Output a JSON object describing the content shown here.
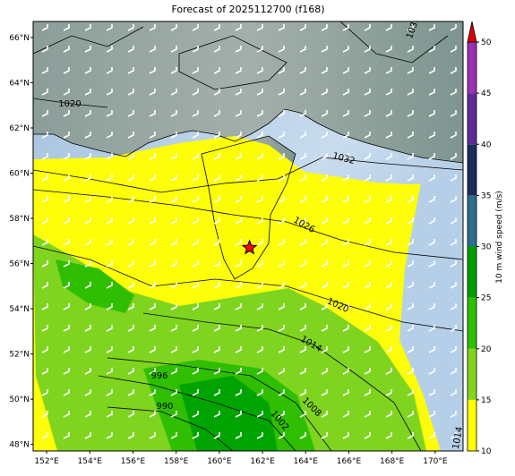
{
  "title": "Forecast of 2025112700 (f168)",
  "map": {
    "xlim": [
      151.375,
      171.29
    ],
    "ylim": [
      47.71,
      66.71
    ],
    "xticks": [
      {
        "value": 152,
        "label": "152°E"
      },
      {
        "value": 154,
        "label": "154°E"
      },
      {
        "value": 156,
        "label": "156°E"
      },
      {
        "value": 158,
        "label": "158°E"
      },
      {
        "value": 160,
        "label": "160°E"
      },
      {
        "value": 162,
        "label": "162°E"
      },
      {
        "value": 164,
        "label": "164°E"
      },
      {
        "value": 166,
        "label": "166°E"
      },
      {
        "value": 168,
        "label": "168°E"
      },
      {
        "value": 170,
        "label": "170°E"
      }
    ],
    "yticks": [
      {
        "value": 48,
        "label": "48°N"
      },
      {
        "value": 50,
        "label": "50°N"
      },
      {
        "value": 52,
        "label": "52°N"
      },
      {
        "value": 54,
        "label": "54°N"
      },
      {
        "value": 56,
        "label": "56°N"
      },
      {
        "value": 58,
        "label": "58°N"
      },
      {
        "value": 60,
        "label": "60°N"
      },
      {
        "value": 62,
        "label": "62°N"
      },
      {
        "value": 64,
        "label": "64°N"
      },
      {
        "value": 66,
        "label": "66°N"
      }
    ],
    "grid": true,
    "marker": {
      "lon": 161.4,
      "lat": 56.7,
      "color": "#ff0000"
    },
    "contour_labels": [
      1020,
      1032,
      1026,
      1020,
      1014,
      1008,
      1002,
      996,
      990,
      1032,
      1014
    ]
  },
  "colorbar": {
    "label": "10 m wind speed (m/s)",
    "lim": [
      10,
      50
    ],
    "ticks": [
      10,
      15,
      20,
      25,
      30,
      35,
      40,
      45,
      50
    ],
    "colors": [
      "#ffff00",
      "#84d41f",
      "#2fbf00",
      "#00a000",
      "#2c6e90",
      "#1c2b5c",
      "#5e2a96",
      "#9a31b3"
    ],
    "extend_color": "#e00000"
  }
}
